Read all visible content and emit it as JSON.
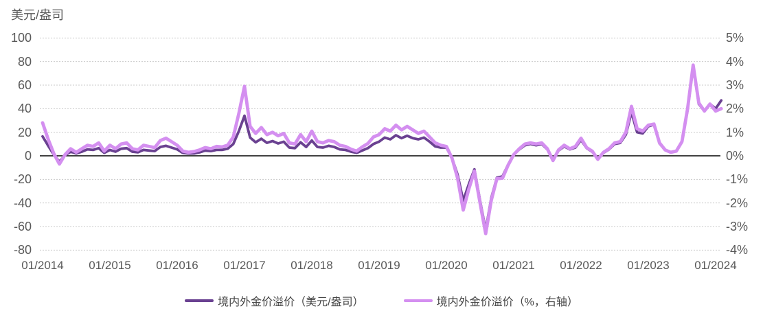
{
  "chart_data": {
    "type": "line",
    "title": "",
    "frequency": "monthly",
    "x_start": "2014-01",
    "x_end": "2024-02",
    "x_tick_labels": [
      "01/2014",
      "01/2015",
      "01/2016",
      "01/2017",
      "01/2018",
      "01/2019",
      "01/2020",
      "01/2021",
      "01/2022",
      "01/2023",
      "01/2024"
    ],
    "left_axis": {
      "unit": "美元/盎司",
      "min": -80,
      "max": 100,
      "ticks": [
        100,
        80,
        60,
        40,
        20,
        0,
        -20,
        -40,
        -60,
        -80
      ]
    },
    "right_axis": {
      "unit": "%",
      "min": -4,
      "max": 5,
      "ticks": [
        5,
        4,
        3,
        2,
        1,
        0,
        -1,
        -2,
        -3,
        -4
      ],
      "tick_labels": [
        "5%",
        "4%",
        "3%",
        "2%",
        "1%",
        "0%",
        "-1%",
        "-2%",
        "-3%",
        "-4%"
      ]
    },
    "grid": "horizontal-dashed",
    "zero_line": true,
    "legend_position": "bottom",
    "series": [
      {
        "name": "境内外金价溢价（美元/盎司）",
        "axis": "left",
        "color": "#6A4191",
        "values": [
          16.5,
          8.5,
          1,
          -5,
          0.5,
          3.5,
          2,
          3.5,
          5.5,
          5,
          6.5,
          2.5,
          5,
          3.5,
          6,
          6.5,
          3.5,
          3,
          5,
          4.5,
          4,
          7.5,
          8.5,
          7,
          5.5,
          2.5,
          2,
          2,
          3,
          4.5,
          4,
          5,
          5,
          6,
          10,
          21,
          34,
          15.5,
          11.5,
          14.5,
          11,
          12.5,
          10.5,
          12,
          7,
          6.5,
          11.5,
          7.5,
          13,
          7.5,
          7,
          8.5,
          7.5,
          5.5,
          5,
          3.5,
          2.5,
          4.5,
          6.5,
          10,
          12,
          15.5,
          14,
          17.5,
          15,
          17,
          15,
          14,
          15.5,
          12,
          8,
          7,
          7,
          -2,
          -16,
          -38,
          -24,
          -11.5,
          -38,
          -63,
          -36,
          -18.5,
          -17.5,
          -7.5,
          1,
          5.5,
          9,
          10,
          9,
          10,
          5.5,
          -3.5,
          4.5,
          8,
          5.5,
          7,
          13.5,
          6.5,
          3.5,
          -2.5,
          2.5,
          5.5,
          10,
          11,
          18,
          37,
          20,
          19,
          25,
          26.5,
          10.5,
          5,
          3,
          4,
          12,
          39,
          76,
          44,
          38,
          44,
          40,
          47
        ]
      },
      {
        "name": "境内外金价溢价（%，右轴）",
        "axis": "right",
        "color": "#D48FF0",
        "values": [
          1.4,
          0.7,
          0.1,
          -0.35,
          0.05,
          0.3,
          0.15,
          0.3,
          0.45,
          0.4,
          0.55,
          0.2,
          0.45,
          0.3,
          0.5,
          0.55,
          0.3,
          0.25,
          0.45,
          0.4,
          0.35,
          0.65,
          0.75,
          0.6,
          0.45,
          0.2,
          0.15,
          0.18,
          0.25,
          0.35,
          0.3,
          0.4,
          0.38,
          0.45,
          0.8,
          1.8,
          2.95,
          1.25,
          0.95,
          1.2,
          0.9,
          1.0,
          0.85,
          0.95,
          0.55,
          0.5,
          0.9,
          0.6,
          1.05,
          0.6,
          0.55,
          0.65,
          0.6,
          0.45,
          0.4,
          0.28,
          0.2,
          0.38,
          0.52,
          0.8,
          0.9,
          1.15,
          1.05,
          1.3,
          1.1,
          1.25,
          1.1,
          0.95,
          1.05,
          0.8,
          0.55,
          0.45,
          0.4,
          -0.1,
          -0.95,
          -2.3,
          -1.4,
          -0.65,
          -2.0,
          -3.3,
          -1.9,
          -0.97,
          -0.95,
          -0.4,
          0.05,
          0.3,
          0.5,
          0.55,
          0.5,
          0.55,
          0.3,
          -0.2,
          0.25,
          0.45,
          0.3,
          0.4,
          0.75,
          0.35,
          0.2,
          -0.15,
          0.15,
          0.3,
          0.55,
          0.6,
          1.0,
          2.1,
          1.15,
          1.05,
          1.3,
          1.35,
          0.55,
          0.25,
          0.15,
          0.2,
          0.6,
          2.0,
          3.85,
          2.25,
          1.9,
          2.2,
          1.9,
          2.0
        ]
      }
    ]
  },
  "style_colors": {
    "grid_line": "#C9C9C9",
    "zero_line": "#000000",
    "tick_text": "#595959",
    "legend_text": "#444444",
    "background": "#FFFFFF"
  }
}
